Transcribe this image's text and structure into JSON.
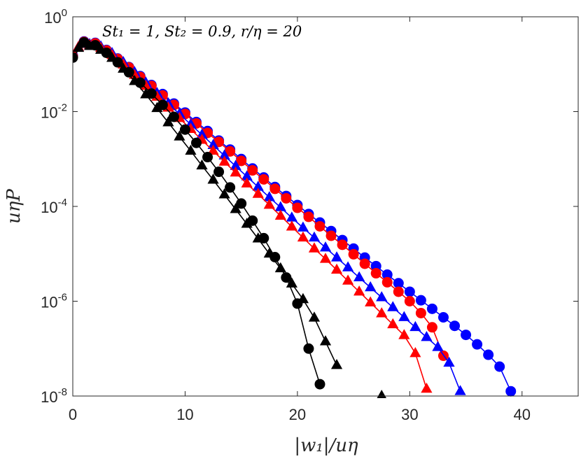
{
  "chart_data": {
    "type": "scatter",
    "title": "",
    "annotation": "St₁ = 1, St₂ = 0.9, r/η = 20",
    "xlabel": "|w₁|/uη",
    "ylabel": "uηP",
    "xlim": [
      0,
      45
    ],
    "ylim_log10": [
      -8,
      0
    ],
    "yscale": "log",
    "grid": false,
    "x_ticks": [
      "0",
      "10",
      "20",
      "30",
      "40"
    ],
    "y_ticks": [
      {
        "base": "10",
        "exp": "0"
      },
      {
        "base": "10",
        "exp": "-2"
      },
      {
        "base": "10",
        "exp": "-4"
      },
      {
        "base": "10",
        "exp": "-6"
      },
      {
        "base": "10",
        "exp": "-8"
      }
    ],
    "series": [
      {
        "name": "blue circles",
        "color": "#0000ff",
        "marker": "circle",
        "x": [
          0.0,
          1.0,
          2.0,
          3.0,
          4.0,
          5.0,
          6.0,
          7.0,
          8.0,
          9.0,
          10.0,
          11.0,
          12.0,
          13.0,
          14.0,
          15.0,
          16.0,
          17.0,
          18.0,
          19.0,
          20.0,
          21.0,
          22.0,
          23.0,
          24.0,
          25.0,
          26.0,
          27.0,
          28.0,
          29.0,
          30.0,
          31.0,
          32.0,
          33.0,
          34.0,
          35.0,
          36.0,
          37.0,
          38.0,
          39.0
        ],
        "log10y": [
          -0.82,
          -0.52,
          -0.55,
          -0.7,
          -0.88,
          -1.06,
          -1.25,
          -1.44,
          -1.63,
          -1.83,
          -2.02,
          -2.22,
          -2.41,
          -2.61,
          -2.8,
          -3.0,
          -3.2,
          -3.39,
          -3.59,
          -3.78,
          -3.97,
          -4.16,
          -4.34,
          -4.52,
          -4.71,
          -4.89,
          -5.08,
          -5.26,
          -5.44,
          -5.62,
          -5.8,
          -5.98,
          -6.16,
          -6.34,
          -6.52,
          -6.71,
          -6.91,
          -7.13,
          -7.38,
          -7.9
        ]
      },
      {
        "name": "red circles",
        "color": "#ff0000",
        "marker": "circle",
        "x": [
          0.0,
          1.0,
          2.0,
          3.0,
          4.0,
          5.0,
          6.0,
          7.0,
          8.0,
          9.0,
          10.0,
          11.0,
          12.0,
          13.0,
          14.0,
          15.0,
          16.0,
          17.0,
          18.0,
          19.0,
          20.0,
          21.0,
          22.0,
          23.0,
          24.0,
          25.0,
          26.0,
          27.0,
          28.0,
          29.0,
          30.0,
          31.0,
          32.0,
          33.0
        ],
        "log10y": [
          -0.84,
          -0.53,
          -0.56,
          -0.71,
          -0.89,
          -1.07,
          -1.27,
          -1.46,
          -1.66,
          -1.86,
          -2.05,
          -2.25,
          -2.45,
          -2.64,
          -2.84,
          -3.04,
          -3.24,
          -3.43,
          -3.63,
          -3.83,
          -4.03,
          -4.22,
          -4.42,
          -4.62,
          -4.81,
          -5.01,
          -5.21,
          -5.41,
          -5.6,
          -5.8,
          -6.0,
          -6.25,
          -6.55,
          -7.15
        ]
      },
      {
        "name": "blue triangles",
        "color": "#0000ff",
        "marker": "triangle",
        "x": [
          0.5,
          1.5,
          2.5,
          3.5,
          4.5,
          5.5,
          6.5,
          7.5,
          8.5,
          9.5,
          10.5,
          11.5,
          12.5,
          13.5,
          14.5,
          15.5,
          16.5,
          17.5,
          18.5,
          19.5,
          20.5,
          21.5,
          22.5,
          23.5,
          24.5,
          25.5,
          26.5,
          27.5,
          28.5,
          29.5,
          30.5,
          31.5,
          32.5,
          33.5,
          34.5
        ],
        "log10y": [
          -0.64,
          -0.58,
          -0.63,
          -0.77,
          -0.96,
          -1.17,
          -1.39,
          -1.61,
          -1.83,
          -2.05,
          -2.27,
          -2.49,
          -2.71,
          -2.93,
          -3.15,
          -3.37,
          -3.59,
          -3.81,
          -4.02,
          -4.24,
          -4.45,
          -4.66,
          -4.87,
          -5.08,
          -5.29,
          -5.5,
          -5.71,
          -5.92,
          -6.13,
          -6.34,
          -6.55,
          -6.76,
          -6.97,
          -7.3,
          -7.9
        ]
      },
      {
        "name": "red triangles",
        "color": "#ff0000",
        "marker": "triangle",
        "x": [
          0.5,
          1.5,
          2.5,
          3.5,
          4.5,
          5.5,
          6.5,
          7.5,
          8.5,
          9.5,
          10.5,
          11.5,
          12.5,
          13.5,
          14.5,
          15.5,
          16.5,
          17.5,
          18.5,
          19.5,
          20.5,
          21.5,
          22.5,
          23.5,
          24.5,
          25.5,
          26.5,
          27.5,
          28.5,
          29.5,
          30.5,
          31.5
        ],
        "log10y": [
          -0.64,
          -0.6,
          -0.66,
          -0.81,
          -1.01,
          -1.23,
          -1.46,
          -1.69,
          -1.92,
          -2.14,
          -2.37,
          -2.6,
          -2.83,
          -3.06,
          -3.29,
          -3.52,
          -3.74,
          -3.97,
          -4.2,
          -4.43,
          -4.66,
          -4.89,
          -5.11,
          -5.34,
          -5.57,
          -5.8,
          -6.03,
          -6.26,
          -6.49,
          -6.72,
          -7.1,
          -7.85
        ]
      },
      {
        "name": "black circles",
        "color": "#000000",
        "marker": "circle",
        "x": [
          0.0,
          1.0,
          2.0,
          3.0,
          4.0,
          5.0,
          6.0,
          7.0,
          8.0,
          9.0,
          10.0,
          11.0,
          12.0,
          13.0,
          14.0,
          15.0,
          16.0,
          17.0,
          18.0,
          19.0,
          20.0,
          21.0,
          22.0
        ],
        "log10y": [
          -0.86,
          -0.54,
          -0.6,
          -0.76,
          -0.96,
          -1.17,
          -1.39,
          -1.62,
          -1.86,
          -2.11,
          -2.38,
          -2.66,
          -2.96,
          -3.27,
          -3.6,
          -3.94,
          -4.3,
          -4.67,
          -5.07,
          -5.5,
          -6.05,
          -7.0,
          -7.75
        ]
      },
      {
        "name": "black triangles",
        "color": "#000000",
        "marker": "triangle",
        "x": [
          0.5,
          1.5,
          2.5,
          3.5,
          4.5,
          5.5,
          6.5,
          7.5,
          8.5,
          9.5,
          10.5,
          11.5,
          12.5,
          13.5,
          14.5,
          15.5,
          16.5,
          17.5,
          18.5,
          19.5,
          20.5,
          21.5,
          22.5,
          23.5,
          27.5
        ],
        "log10y": [
          -0.66,
          -0.62,
          -0.7,
          -0.87,
          -1.1,
          -1.36,
          -1.64,
          -1.93,
          -2.23,
          -2.53,
          -2.83,
          -3.14,
          -3.44,
          -3.75,
          -4.06,
          -4.37,
          -4.68,
          -5.0,
          -5.31,
          -5.63,
          -5.96,
          -6.35,
          -6.85,
          -7.35,
          -8.0
        ]
      }
    ]
  }
}
